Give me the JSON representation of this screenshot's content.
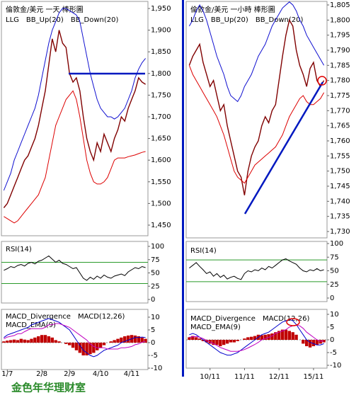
{
  "chart_data": [
    {
      "type": "line",
      "title": "倫敦金/美元 一天 棒形圖",
      "ylim": [
        1450,
        1950
      ],
      "yticks": [
        {
          "value": 1450,
          "label": "1,450"
        },
        {
          "value": 1500,
          "label": "1,500"
        },
        {
          "value": 1550,
          "label": "1,550"
        },
        {
          "value": 1600,
          "label": "1,600"
        },
        {
          "value": 1650,
          "label": "1,650"
        },
        {
          "value": 1700,
          "label": "1,700"
        },
        {
          "value": 1750,
          "label": "1,750"
        },
        {
          "value": 1800,
          "label": "1,800"
        },
        {
          "value": 1850,
          "label": "1,850"
        },
        {
          "value": 1900,
          "label": "1,900"
        },
        {
          "value": 1950,
          "label": "1,950"
        }
      ],
      "series": [
        {
          "name": "LLG",
          "color": "#800000",
          "values": [
            1490,
            1500,
            1520,
            1540,
            1560,
            1580,
            1600,
            1610,
            1630,
            1650,
            1680,
            1720,
            1760,
            1820,
            1880,
            1850,
            1900,
            1870,
            1860,
            1800,
            1780,
            1790,
            1760,
            1700,
            1650,
            1620,
            1600,
            1640,
            1620,
            1660,
            1640,
            1620,
            1650,
            1670,
            1700,
            1690,
            1720,
            1740,
            1760,
            1790,
            1780,
            1775
          ]
        },
        {
          "name": "BB_Up(20)",
          "color": "#1010d0",
          "values": [
            1530,
            1550,
            1570,
            1600,
            1620,
            1640,
            1660,
            1680,
            1700,
            1720,
            1750,
            1790,
            1830,
            1870,
            1900,
            1920,
            1940,
            1950,
            1950,
            1945,
            1940,
            1935,
            1920,
            1880,
            1840,
            1800,
            1770,
            1740,
            1720,
            1710,
            1700,
            1700,
            1695,
            1700,
            1710,
            1720,
            1740,
            1760,
            1790,
            1810,
            1825,
            1835
          ]
        },
        {
          "name": "BB_Down(20)",
          "color": "#dd0000",
          "values": [
            1470,
            1465,
            1460,
            1455,
            1460,
            1470,
            1480,
            1490,
            1500,
            1510,
            1520,
            1540,
            1560,
            1600,
            1640,
            1680,
            1700,
            1720,
            1740,
            1750,
            1760,
            1740,
            1700,
            1650,
            1600,
            1570,
            1550,
            1545,
            1545,
            1550,
            1560,
            1580,
            1600,
            1605,
            1605,
            1605,
            1608,
            1610,
            1612,
            1615,
            1618,
            1620
          ]
        }
      ]
    },
    {
      "type": "line",
      "ylim": [
        0,
        100
      ],
      "yticks": [
        0,
        25,
        50,
        75,
        100
      ],
      "levels": [
        30,
        70
      ],
      "level_color": "#2a9a2a",
      "series": [
        {
          "name": "RSI(14)",
          "color": "#000000",
          "values": [
            55,
            58,
            62,
            60,
            64,
            66,
            63,
            68,
            70,
            67,
            72,
            74,
            78,
            82,
            76,
            70,
            74,
            68,
            66,
            62,
            58,
            60,
            50,
            40,
            36,
            42,
            38,
            44,
            40,
            46,
            42,
            40,
            44,
            46,
            48,
            45,
            52,
            56,
            60,
            58,
            62,
            60
          ]
        }
      ]
    },
    {
      "type": "combo",
      "ylim": [
        -10,
        10
      ],
      "yticks": [
        -10,
        -5,
        0,
        5,
        10
      ],
      "categories": [
        null,
        "1/7",
        null,
        null,
        null,
        null,
        null,
        null,
        null,
        null,
        null,
        "2/8",
        null,
        null,
        null,
        null,
        null,
        null,
        null,
        "2/9",
        null,
        null,
        null,
        null,
        null,
        null,
        null,
        null,
        "4/10",
        null,
        null,
        null,
        null,
        null,
        null,
        null,
        null,
        "4/11",
        null,
        null,
        null,
        null
      ],
      "series": [
        {
          "name": "MACD_Divergence",
          "color": "#c00000",
          "style": "bar",
          "values": [
            0.5,
            0.8,
            1,
            1.2,
            1,
            1.5,
            1.2,
            1,
            1.5,
            2,
            2.5,
            3,
            3,
            2.5,
            2,
            1,
            0.5,
            0,
            -0.5,
            -1,
            -2,
            -3,
            -4,
            -5,
            -5,
            -4.5,
            -4,
            -3,
            -2,
            -1,
            0,
            0.5,
            1,
            1.5,
            2,
            2.5,
            2.8,
            3,
            2.8,
            2.5,
            2,
            1.5
          ]
        },
        {
          "name": "MACD(12,26)",
          "color": "#0000cc",
          "style": "line",
          "values": [
            2,
            3,
            3.5,
            4,
            4.5,
            5,
            5.5,
            6,
            7,
            7.5,
            8,
            8.5,
            9,
            9.5,
            9,
            8.5,
            8,
            7,
            6,
            5,
            3,
            1,
            -1,
            -3,
            -4,
            -5,
            -5.5,
            -5,
            -4,
            -3,
            -2.5,
            -2,
            -1.5,
            -1,
            0,
            0.5,
            1,
            1.5,
            2,
            2,
            2.2,
            2
          ]
        },
        {
          "name": "MACD_EMA(9)",
          "color": "#c000c0",
          "style": "line",
          "values": [
            1.5,
            2.2,
            2.5,
            2.8,
            3.5,
            3.5,
            4.3,
            5,
            5.5,
            5.5,
            5.5,
            5.5,
            6,
            7,
            7,
            7.5,
            7.5,
            7,
            6.5,
            6,
            5,
            4,
            3,
            2,
            1,
            -0.5,
            -1.5,
            -2,
            -2,
            -2,
            -2.5,
            -2.5,
            -2.5,
            -2.5,
            -2,
            -2,
            -1.8,
            -1.5,
            -0.8,
            -0.5,
            0.2,
            0.5
          ]
        }
      ]
    },
    {
      "type": "line",
      "title": "倫敦金/美元 一小時 棒形圖",
      "ylim": [
        1730,
        1805
      ],
      "yticks": [
        {
          "value": 1730,
          "label": "1,730"
        },
        {
          "value": 1735,
          "label": "1,735"
        },
        {
          "value": 1740,
          "label": "1,740"
        },
        {
          "value": 1745,
          "label": "1,745"
        },
        {
          "value": 1750,
          "label": "1,750"
        },
        {
          "value": 1755,
          "label": "1,755"
        },
        {
          "value": 1760,
          "label": "1,760"
        },
        {
          "value": 1765,
          "label": "1,765"
        },
        {
          "value": 1770,
          "label": "1,770"
        },
        {
          "value": 1775,
          "label": "1,775"
        },
        {
          "value": 1780,
          "label": "1,780"
        },
        {
          "value": 1785,
          "label": "1,785"
        },
        {
          "value": 1790,
          "label": "1,790"
        },
        {
          "value": 1795,
          "label": "1,795"
        },
        {
          "value": 1800,
          "label": "1,800"
        },
        {
          "value": 1805,
          "label": "1,805"
        }
      ],
      "series": [
        {
          "name": "LLG",
          "color": "#800000",
          "values": [
            1785,
            1788,
            1790,
            1792,
            1786,
            1782,
            1778,
            1780,
            1775,
            1770,
            1772,
            1765,
            1760,
            1755,
            1750,
            1748,
            1742,
            1750,
            1755,
            1758,
            1760,
            1765,
            1768,
            1766,
            1770,
            1772,
            1780,
            1788,
            1795,
            1800,
            1798,
            1790,
            1785,
            1782,
            1778,
            1784,
            1786,
            1780,
            1778,
            1780
          ]
        },
        {
          "name": "BB_Up(20)",
          "color": "#1010d0",
          "values": [
            1798,
            1800,
            1803,
            1805,
            1803,
            1800,
            1796,
            1792,
            1788,
            1785,
            1782,
            1778,
            1775,
            1774,
            1773,
            1775,
            1778,
            1780,
            1782,
            1785,
            1788,
            1790,
            1792,
            1795,
            1798,
            1800,
            1802,
            1804,
            1805,
            1806,
            1805,
            1803,
            1800,
            1798,
            1795,
            1793,
            1791,
            1789,
            1787,
            1785
          ]
        },
        {
          "name": "BB_Down(20)",
          "color": "#dd0000",
          "values": [
            1785,
            1782,
            1780,
            1778,
            1776,
            1774,
            1772,
            1770,
            1768,
            1765,
            1762,
            1758,
            1754,
            1750,
            1748,
            1747,
            1746,
            1748,
            1750,
            1752,
            1753,
            1754,
            1755,
            1756,
            1757,
            1758,
            1760,
            1762,
            1765,
            1768,
            1770,
            1772,
            1774,
            1775,
            1773,
            1772,
            1772,
            1773,
            1774,
            1776
          ]
        }
      ]
    },
    {
      "type": "line",
      "ylim": [
        0,
        100
      ],
      "yticks": [
        0,
        25,
        50,
        75,
        100
      ],
      "levels": [
        30,
        70
      ],
      "level_color": "#2a9a2a",
      "series": [
        {
          "name": "RSI(14)",
          "color": "#000000",
          "values": [
            55,
            60,
            65,
            58,
            52,
            45,
            48,
            40,
            45,
            38,
            42,
            35,
            38,
            40,
            36,
            34,
            45,
            50,
            48,
            52,
            50,
            55,
            52,
            58,
            55,
            60,
            65,
            70,
            72,
            68,
            65,
            62,
            55,
            50,
            48,
            52,
            50,
            54,
            50,
            52
          ]
        }
      ]
    },
    {
      "type": "combo",
      "ylim": [
        -10,
        10
      ],
      "yticks": [
        -10,
        -5,
        0,
        5,
        10
      ],
      "categories": [
        null,
        null,
        null,
        null,
        null,
        null,
        "10/11",
        null,
        null,
        null,
        null,
        null,
        null,
        null,
        null,
        null,
        "11/11",
        null,
        null,
        null,
        null,
        null,
        null,
        null,
        null,
        null,
        "12/11",
        null,
        null,
        null,
        null,
        null,
        null,
        null,
        null,
        null,
        "15/11",
        null,
        null,
        null
      ],
      "series": [
        {
          "name": "MACD_Divergence",
          "color": "#c00000",
          "style": "bar",
          "values": [
            1,
            1.5,
            1,
            0.5,
            -0.5,
            -1,
            -1.5,
            -2,
            -2,
            -2.5,
            -2,
            -1.5,
            -1,
            -1,
            -0.5,
            0,
            0.5,
            1,
            1.2,
            1.5,
            2,
            1.8,
            2,
            2.2,
            2.5,
            3,
            3.5,
            4,
            4,
            3.5,
            3,
            2,
            0,
            -1.5,
            -2.5,
            -3,
            -2.5,
            -2,
            -1.5,
            -1
          ]
        },
        {
          "name": "MACD(12,26)",
          "color": "#0000cc",
          "style": "line",
          "values": [
            2,
            2.5,
            2,
            1,
            0,
            -1,
            -2,
            -3,
            -4,
            -5,
            -5.5,
            -6,
            -6,
            -5.5,
            -5,
            -4,
            -3,
            -2,
            -1,
            0,
            1,
            2,
            2.5,
            3,
            4,
            5,
            6,
            7,
            7.5,
            8,
            7.5,
            6,
            4,
            2,
            0,
            -1,
            -1.5,
            -2,
            -2,
            -1.5
          ]
        },
        {
          "name": "MACD_EMA(9)",
          "color": "#c000c0",
          "style": "line",
          "values": [
            1,
            1.2,
            1.3,
            1,
            0.5,
            -0.2,
            -0.8,
            -1.5,
            -2.2,
            -3,
            -3.5,
            -4,
            -4.5,
            -4.5,
            -4.5,
            -4.2,
            -3.8,
            -3.2,
            -2.5,
            -1.8,
            -1,
            0,
            0.5,
            1,
            1.5,
            2.5,
            3,
            3.5,
            4,
            5,
            5.5,
            5.8,
            5.5,
            4.5,
            3,
            2,
            1,
            0,
            -0.5,
            -0.5
          ]
        }
      ]
    }
  ],
  "footer": "金色年华理财室"
}
